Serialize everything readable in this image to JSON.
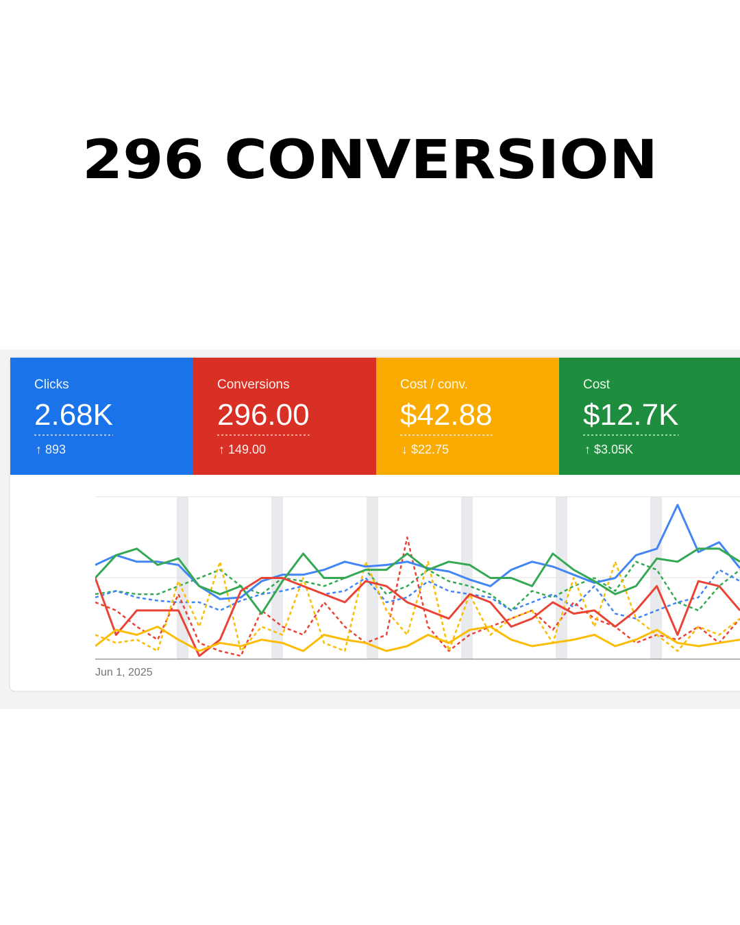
{
  "title": "296 CONVERSION",
  "cards": [
    {
      "label": "Clicks",
      "value": "2.68K",
      "change": "↑ 893",
      "color": "#1a73e8"
    },
    {
      "label": "Conversions",
      "value": "296.00",
      "change": "↑ 149.00",
      "color": "#d93025"
    },
    {
      "label": "Cost / conv.",
      "value": "$42.88",
      "change": "↓ $22.75",
      "color": "#f9ab00"
    },
    {
      "label": "Cost",
      "value": "$12.7K",
      "change": "↑ $3.05K",
      "color": "#1e8e3e"
    }
  ],
  "chart": {
    "type": "line",
    "x_label": "Jun 1, 2025",
    "ylim": [
      0,
      100
    ],
    "series": [
      {
        "color": "#4285f4",
        "dashed": false,
        "values": [
          58,
          64,
          60,
          60,
          58,
          45,
          37,
          38,
          48,
          52,
          52,
          55,
          60,
          57,
          58,
          60,
          56,
          54,
          49,
          45,
          55,
          60,
          57,
          52,
          47,
          50,
          64,
          68,
          95,
          66,
          72,
          56
        ]
      },
      {
        "color": "#34a853",
        "dashed": false,
        "values": [
          50,
          64,
          68,
          58,
          62,
          45,
          40,
          45,
          28,
          48,
          65,
          50,
          50,
          55,
          55,
          65,
          55,
          60,
          58,
          50,
          50,
          45,
          65,
          55,
          48,
          40,
          45,
          62,
          60,
          68,
          68,
          60
        ]
      },
      {
        "color": "#ea4335",
        "dashed": false,
        "values": [
          50,
          15,
          30,
          30,
          30,
          2,
          12,
          42,
          50,
          50,
          45,
          40,
          35,
          48,
          45,
          35,
          30,
          25,
          40,
          35,
          20,
          25,
          35,
          28,
          30,
          20,
          30,
          45,
          15,
          48,
          45,
          30
        ]
      },
      {
        "color": "#fbbc04",
        "dashed": false,
        "values": [
          8,
          18,
          15,
          20,
          12,
          5,
          10,
          8,
          12,
          10,
          5,
          15,
          12,
          10,
          5,
          8,
          15,
          10,
          18,
          20,
          12,
          8,
          10,
          12,
          15,
          8,
          12,
          18,
          10,
          8,
          10,
          12
        ]
      },
      {
        "color": "#34a853",
        "dashed": true,
        "values": [
          40,
          42,
          40,
          40,
          45,
          50,
          55,
          45,
          40,
          50,
          48,
          45,
          50,
          55,
          40,
          45,
          55,
          48,
          45,
          40,
          30,
          42,
          38,
          45,
          50,
          42,
          60,
          55,
          35,
          30,
          45,
          55
        ]
      },
      {
        "color": "#4285f4",
        "dashed": true,
        "values": [
          38,
          42,
          38,
          36,
          35,
          35,
          30,
          36,
          40,
          42,
          45,
          40,
          42,
          50,
          35,
          38,
          48,
          42,
          40,
          38,
          30,
          35,
          40,
          32,
          45,
          28,
          25,
          30,
          35,
          38,
          55,
          48
        ]
      },
      {
        "color": "#ea4335",
        "dashed": true,
        "values": [
          35,
          30,
          20,
          12,
          40,
          10,
          5,
          2,
          30,
          20,
          15,
          35,
          20,
          10,
          15,
          75,
          20,
          5,
          15,
          20,
          25,
          30,
          18,
          35,
          25,
          20,
          10,
          15,
          12,
          20,
          10,
          25
        ]
      },
      {
        "color": "#fbbc04",
        "dashed": true,
        "values": [
          15,
          10,
          12,
          5,
          48,
          20,
          60,
          5,
          20,
          15,
          50,
          10,
          5,
          60,
          30,
          15,
          60,
          5,
          40,
          15,
          25,
          30,
          10,
          50,
          20,
          60,
          25,
          15,
          5,
          20,
          15,
          25
        ]
      }
    ]
  }
}
